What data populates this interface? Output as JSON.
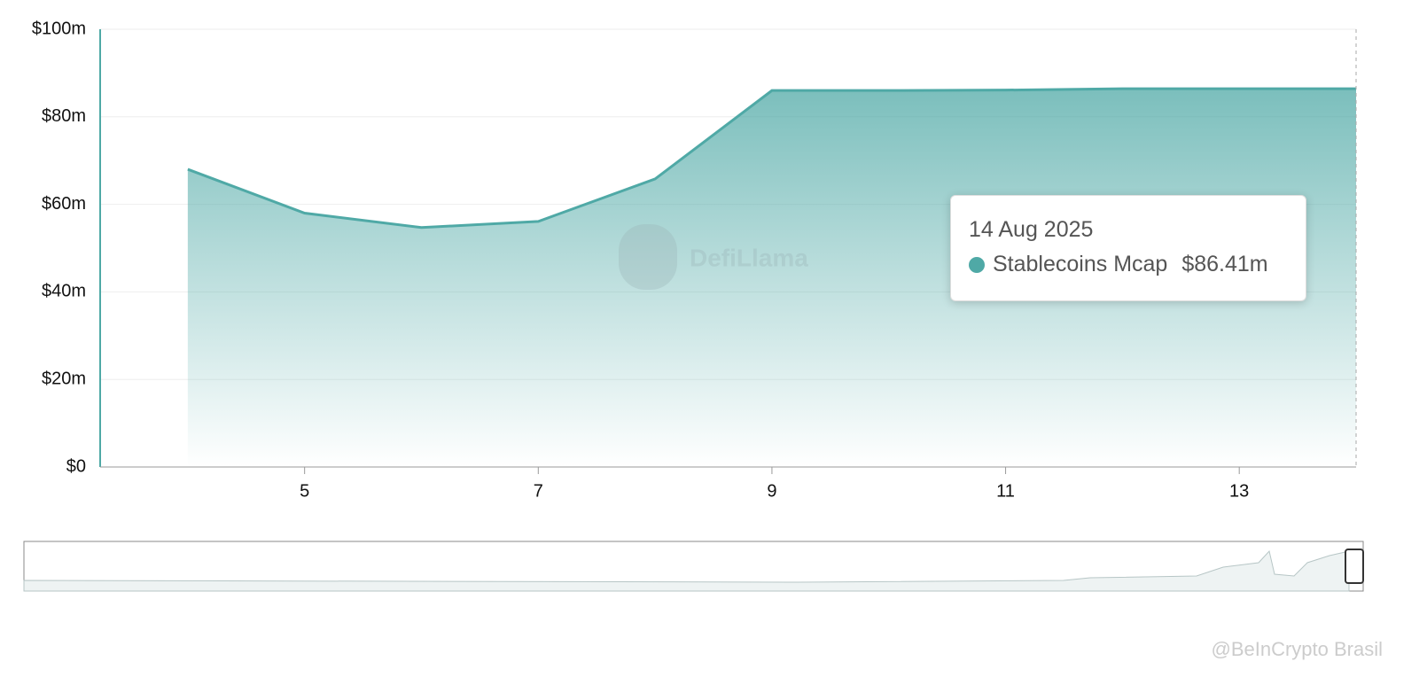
{
  "chart_data": {
    "type": "area",
    "x": [
      4,
      5,
      6,
      7,
      8,
      9,
      10,
      11,
      12,
      13,
      14
    ],
    "series": [
      {
        "name": "Stablecoins Mcap",
        "color": "#4fa9a6",
        "values": [
          68,
          58,
          54.7,
          56.1,
          65.8,
          86,
          86,
          86.1,
          86.4,
          86.4,
          86.41
        ]
      }
    ],
    "xlim": [
      3.25,
      14
    ],
    "xticks": [
      5,
      7,
      9,
      11,
      13
    ],
    "ylim": [
      0,
      100
    ],
    "yticks": [
      {
        "value": 0,
        "label": "$0"
      },
      {
        "value": 20,
        "label": "$20m"
      },
      {
        "value": 40,
        "label": "$40m"
      },
      {
        "value": 60,
        "label": "$60m"
      },
      {
        "value": 80,
        "label": "$80m"
      },
      {
        "value": 100,
        "label": "$100m"
      }
    ],
    "grid": true,
    "tooltip": {
      "x_label": "14 Aug 2025",
      "value_label": "$86.41m"
    },
    "watermark": "DefiLlama"
  },
  "credit": "@BeInCrypto Brasil"
}
